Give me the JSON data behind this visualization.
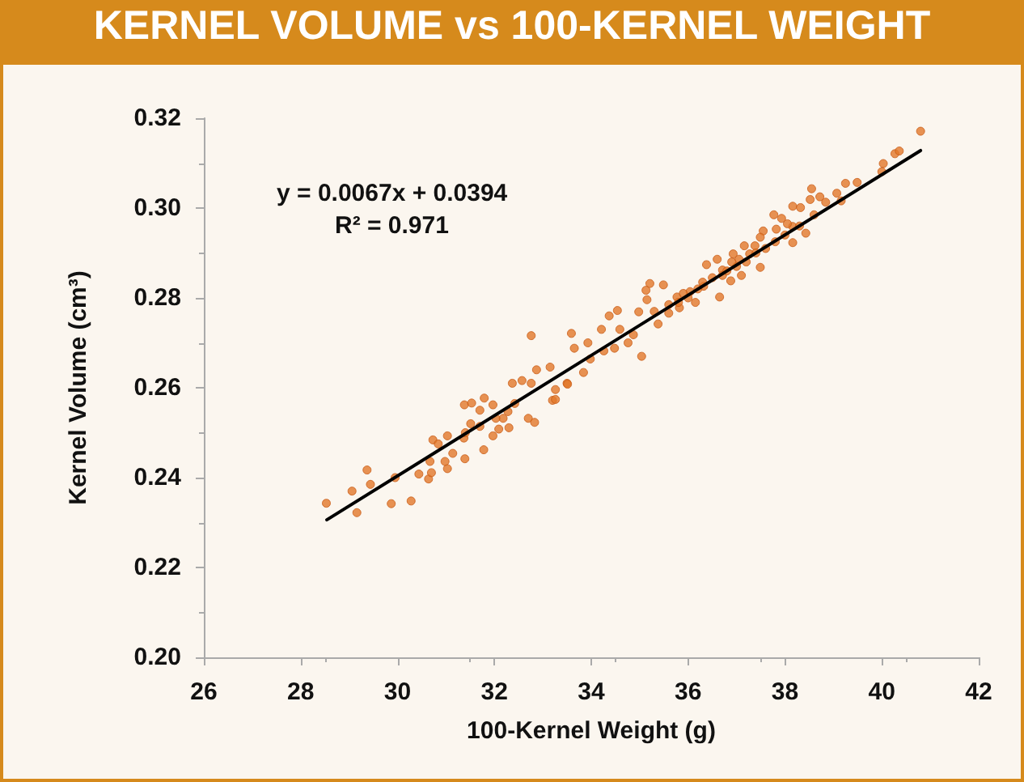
{
  "chart_data": {
    "type": "scatter",
    "title": "KERNEL VOLUME vs 100-KERNEL WEIGHT",
    "xlabel": "100-Kernel Weight (g)",
    "ylabel": "Kernel Volume (cm³)",
    "annotations": [
      "y = 0.0067x + 0.0394",
      "R² = 0.971"
    ],
    "xlim": [
      26,
      42
    ],
    "xticks": [
      26,
      28,
      30,
      32,
      34,
      36,
      38,
      40,
      42
    ],
    "ylim": [
      0.2,
      0.32
    ],
    "yticks": [
      {
        "value": 0.2,
        "label": "0.20"
      },
      {
        "value": 0.22,
        "label": "0.22"
      },
      {
        "value": 0.24,
        "label": "0.24"
      },
      {
        "value": 0.26,
        "label": "0.26"
      },
      {
        "value": 0.28,
        "label": "0.28"
      },
      {
        "value": 0.3,
        "label": "0.30"
      },
      {
        "value": 0.32,
        "label": "0.32"
      }
    ],
    "grid": false,
    "marker": "circle",
    "series": [
      {
        "type": "scatter",
        "color": "#e2782a",
        "x": [
          28.53,
          29.16,
          29.06,
          29.44,
          29.37,
          29.87,
          30.28,
          29.95,
          30.44,
          30.64,
          30.7,
          31.03,
          30.98,
          30.67,
          31.14,
          31.39,
          30.73,
          31.03,
          30.84,
          31.78,
          31.37,
          31.51,
          31.7,
          31.4,
          31.97,
          32.09,
          32.3,
          32.18,
          32.03,
          31.7,
          31.97,
          31.38,
          31.53,
          31.79,
          32.7,
          32.83,
          32.42,
          32.28,
          33.2,
          32.37,
          32.57,
          32.76,
          33.26,
          33.5,
          32.76,
          33.59,
          32.87,
          33.15,
          33.26,
          33.51,
          33.65,
          33.93,
          33.84,
          33.98,
          34.21,
          34.37,
          34.54,
          34.59,
          34.48,
          34.26,
          34.76,
          34.87,
          35.04,
          34.98,
          35.15,
          35.21,
          35.49,
          35.13,
          35.38,
          35.6,
          35.82,
          35.77,
          36.04,
          36.15,
          36.32,
          36.38,
          36.65,
          36.71,
          36.88,
          37.05,
          37.27,
          37.38,
          40.8,
          40.27,
          40.36,
          40.03,
          40.0,
          39.49,
          39.25,
          39.07,
          38.55,
          38.72,
          38.52,
          38.84,
          39.16,
          38.16,
          38.32,
          37.77,
          37.93,
          38.43,
          38.16,
          37.55,
          36.6,
          36.93,
          37.16,
          37.49,
          37.49,
          37.1,
          36.71,
          37.82,
          38.05,
          38.16,
          36.0,
          36.2,
          36.5,
          36.8,
          37.0,
          37.2,
          37.4,
          35.8,
          35.6,
          36.3,
          36.9,
          37.6,
          37.8,
          38.0,
          38.3,
          38.6,
          35.3,
          35.9
        ],
        "values": [
          0.2343,
          0.2322,
          0.237,
          0.2385,
          0.2417,
          0.2342,
          0.2348,
          0.24,
          0.2408,
          0.2397,
          0.2411,
          0.242,
          0.2436,
          0.2436,
          0.2454,
          0.2442,
          0.2484,
          0.2493,
          0.2475,
          0.2462,
          0.2488,
          0.252,
          0.2514,
          0.25,
          0.2493,
          0.2508,
          0.2511,
          0.2532,
          0.2532,
          0.255,
          0.2562,
          0.2562,
          0.2566,
          0.2577,
          0.2532,
          0.2523,
          0.2565,
          0.2547,
          0.2572,
          0.261,
          0.2616,
          0.261,
          0.2596,
          0.261,
          0.2716,
          0.2721,
          0.264,
          0.2646,
          0.2574,
          0.2608,
          0.2688,
          0.27,
          0.2634,
          0.2664,
          0.273,
          0.276,
          0.2772,
          0.273,
          0.2688,
          0.2682,
          0.27,
          0.2718,
          0.267,
          0.2769,
          0.2796,
          0.2832,
          0.2829,
          0.2817,
          0.2742,
          0.2766,
          0.2778,
          0.2802,
          0.2814,
          0.279,
          0.2826,
          0.2874,
          0.2802,
          0.2862,
          0.2838,
          0.2886,
          0.2898,
          0.2916,
          0.3171,
          0.3121,
          0.3127,
          0.3099,
          0.3081,
          0.3057,
          0.3055,
          0.3033,
          0.3043,
          0.3025,
          0.3019,
          0.3013,
          0.3016,
          0.3004,
          0.3001,
          0.2985,
          0.2977,
          0.2944,
          0.2959,
          0.2949,
          0.2886,
          0.2898,
          0.2916,
          0.2935,
          0.2868,
          0.285,
          0.285,
          0.2953,
          0.2965,
          0.2923,
          0.28,
          0.282,
          0.2845,
          0.286,
          0.287,
          0.288,
          0.29,
          0.279,
          0.2785,
          0.2835,
          0.288,
          0.291,
          0.2925,
          0.294,
          0.296,
          0.2985,
          0.277,
          0.281
        ]
      },
      {
        "type": "line",
        "color": "#000000",
        "marker": "none",
        "line_style": "solid",
        "x": [
          28.54,
          40.8
        ],
        "values": [
          0.2306,
          0.3128
        ]
      }
    ]
  }
}
